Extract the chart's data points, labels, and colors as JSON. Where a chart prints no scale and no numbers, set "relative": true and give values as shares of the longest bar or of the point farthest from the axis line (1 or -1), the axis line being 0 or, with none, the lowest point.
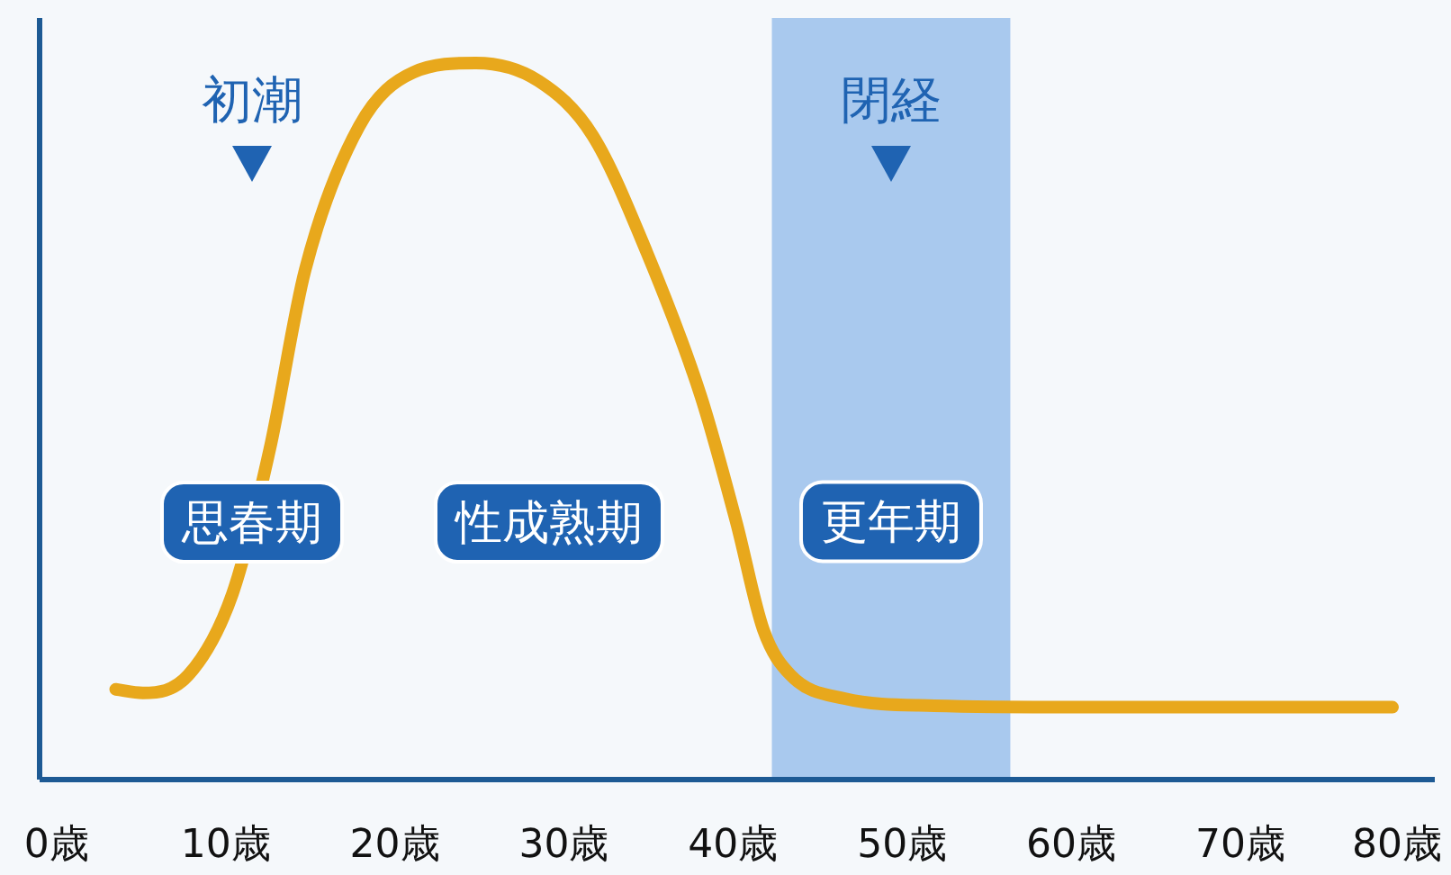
{
  "chart_data": {
    "type": "line",
    "relative": true,
    "x": [
      3.5,
      5.1,
      7.8,
      10.4,
      12.6,
      14.7,
      17.9,
      21.1,
      24.8,
      28.5,
      31.7,
      34.9,
      38.1,
      40.2,
      41.8,
      43.4,
      46.6,
      51.9,
      60.4,
      79.0
    ],
    "series": [
      {
        "color": "#e8a81c",
        "values": [
          0.126,
          0.121,
          0.146,
          0.259,
          0.46,
          0.711,
          0.912,
          0.987,
          1,
          0.975,
          0.899,
          0.736,
          0.535,
          0.359,
          0.209,
          0.146,
          0.113,
          0.103,
          0.101,
          0.101
        ]
      }
    ],
    "xlim": [
      -1,
      81.5
    ],
    "xticks": [
      {
        "value": 0,
        "label": "0歳"
      },
      {
        "value": 10,
        "label": "10歳"
      },
      {
        "value": 20,
        "label": "20歳"
      },
      {
        "value": 30,
        "label": "30歳"
      },
      {
        "value": 40,
        "label": "40歳"
      },
      {
        "value": 50,
        "label": "50歳"
      },
      {
        "value": 60,
        "label": "60歳"
      },
      {
        "value": 70,
        "label": "70歳"
      },
      {
        "value": 80,
        "label": "80歳"
      }
    ],
    "tick_labels": "x",
    "bands": [
      {
        "axis": "x",
        "from": 42.3,
        "to": 56.4,
        "label": "更年期",
        "color": "#a9c9ee"
      }
    ],
    "annotations": [
      "初潮",
      "閉経",
      "思春期",
      "性成熟期"
    ],
    "marker": "none",
    "line_style": "solid",
    "grid": false
  }
}
